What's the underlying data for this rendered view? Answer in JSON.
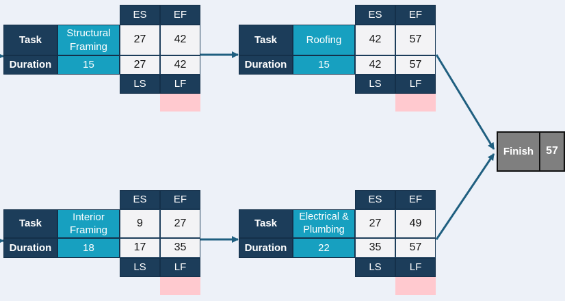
{
  "labels": {
    "task": "Task",
    "duration": "Duration",
    "es": "ES",
    "ef": "EF",
    "ls": "LS",
    "lf": "LF"
  },
  "nodes": {
    "structural_framing": {
      "name": "Structural Framing",
      "duration": "15",
      "es": "27",
      "ef": "42",
      "ls": "27",
      "lf": "42"
    },
    "roofing": {
      "name": "Roofing",
      "duration": "15",
      "es": "42",
      "ef": "57",
      "ls": "42",
      "lf": "57"
    },
    "interior_framing": {
      "name": "Interior Framing",
      "duration": "18",
      "es": "9",
      "ef": "27",
      "ls": "17",
      "lf": "35"
    },
    "electrical_plumbing": {
      "name": "Electrical & Plumbing",
      "duration": "22",
      "es": "27",
      "ef": "49",
      "ls": "35",
      "lf": "57"
    }
  },
  "finish": {
    "label": "Finish",
    "value": "57"
  },
  "colors": {
    "header_navy": "#1c3d5a",
    "task_teal": "#17a0c0",
    "value_bg": "#f3f3f5",
    "slack_pink": "#ffc9cf",
    "finish_gray": "#7f7f7f",
    "arrow": "#1f5f80",
    "background": "#edf1f8"
  }
}
